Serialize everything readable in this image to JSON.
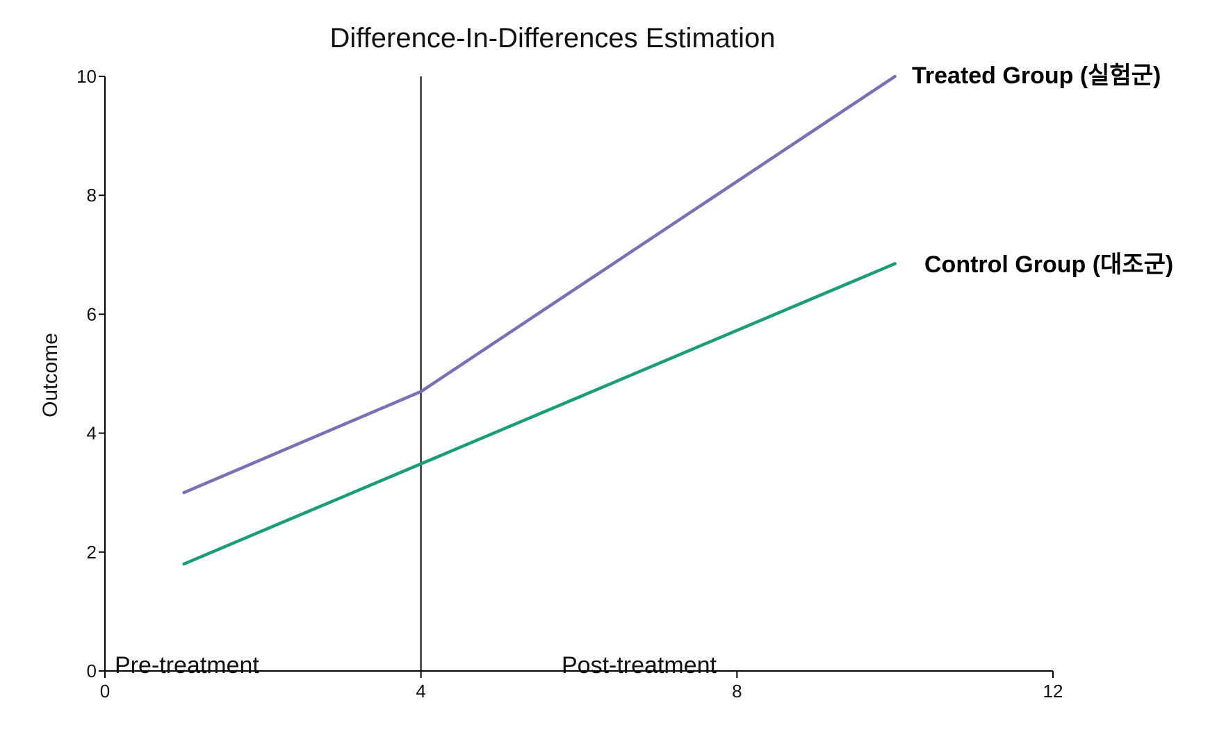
{
  "chart_data": {
    "type": "line",
    "title": "Difference-In-Differences Estimation",
    "xlabel": "",
    "ylabel": "Outcome",
    "xlim": [
      0,
      12
    ],
    "ylim": [
      0,
      10
    ],
    "xticks": [
      0,
      4,
      8,
      12
    ],
    "yticks": [
      0,
      2,
      4,
      6,
      8,
      10
    ],
    "grid": false,
    "series": [
      {
        "name": "Treated Group (실험군)",
        "color": "#7a70b5",
        "x": [
          1,
          4,
          10
        ],
        "y": [
          3.0,
          4.7,
          10.0
        ]
      },
      {
        "name": "Control Group (대조군)",
        "color": "#1b9e77",
        "x": [
          1,
          10
        ],
        "y": [
          1.8,
          6.85
        ]
      }
    ],
    "vertical_line": {
      "x": 4,
      "color": "#000000"
    },
    "region_labels": [
      "Pre-treatment",
      "Post-treatment"
    ]
  }
}
